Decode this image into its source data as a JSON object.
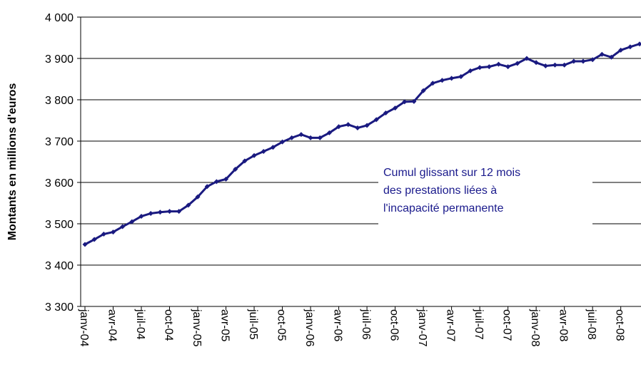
{
  "chart_data": {
    "type": "line",
    "y_label": "Montants en millions d'euros",
    "annotation": [
      "Cumul glissant sur 12 mois",
      "des prestations liées à",
      "l'incapacité permanente"
    ],
    "categories": [
      "janv-04",
      null,
      null,
      "avr-04",
      null,
      null,
      "juil-04",
      null,
      null,
      "oct-04",
      null,
      null,
      "janv-05",
      null,
      null,
      "avr-05",
      null,
      null,
      "juil-05",
      null,
      null,
      "oct-05",
      null,
      null,
      "janv-06",
      null,
      null,
      "avr-06",
      null,
      null,
      "juil-06",
      null,
      null,
      "oct-06",
      null,
      null,
      "janv-07",
      null,
      null,
      "avr-07",
      null,
      null,
      "juil-07",
      null,
      null,
      "oct-07",
      null,
      null,
      "janv-08",
      null,
      null,
      "avr-08",
      null,
      null,
      "juil-08",
      null,
      null,
      "oct-08",
      null,
      null
    ],
    "series": [
      {
        "name": "Cumul glissant",
        "color": "#1a1a80",
        "values": [
          3450,
          3462,
          3475,
          3480,
          3493,
          3505,
          3518,
          3525,
          3528,
          3530,
          3530,
          3545,
          3565,
          3590,
          3602,
          3608,
          3632,
          3652,
          3665,
          3675,
          3685,
          3698,
          3708,
          3716,
          3708,
          3708,
          3720,
          3735,
          3740,
          3732,
          3738,
          3752,
          3768,
          3780,
          3795,
          3796,
          3822,
          3840,
          3847,
          3852,
          3856,
          3870,
          3878,
          3880,
          3886,
          3880,
          3888,
          3900,
          3890,
          3882,
          3884,
          3884,
          3893,
          3893,
          3897,
          3910,
          3903,
          3920,
          3928,
          3935
        ]
      }
    ],
    "ylim": [
      3300,
      4000
    ],
    "yticks": [
      {
        "value": 3300,
        "label": "3 300"
      },
      {
        "value": 3400,
        "label": "3 400"
      },
      {
        "value": 3500,
        "label": "3 500"
      },
      {
        "value": 3600,
        "label": "3 600"
      },
      {
        "value": 3700,
        "label": "3 700"
      },
      {
        "value": 3800,
        "label": "3 800"
      },
      {
        "value": 3900,
        "label": "3 900"
      },
      {
        "value": 4000,
        "label": "4 000"
      }
    ],
    "grid": true
  }
}
